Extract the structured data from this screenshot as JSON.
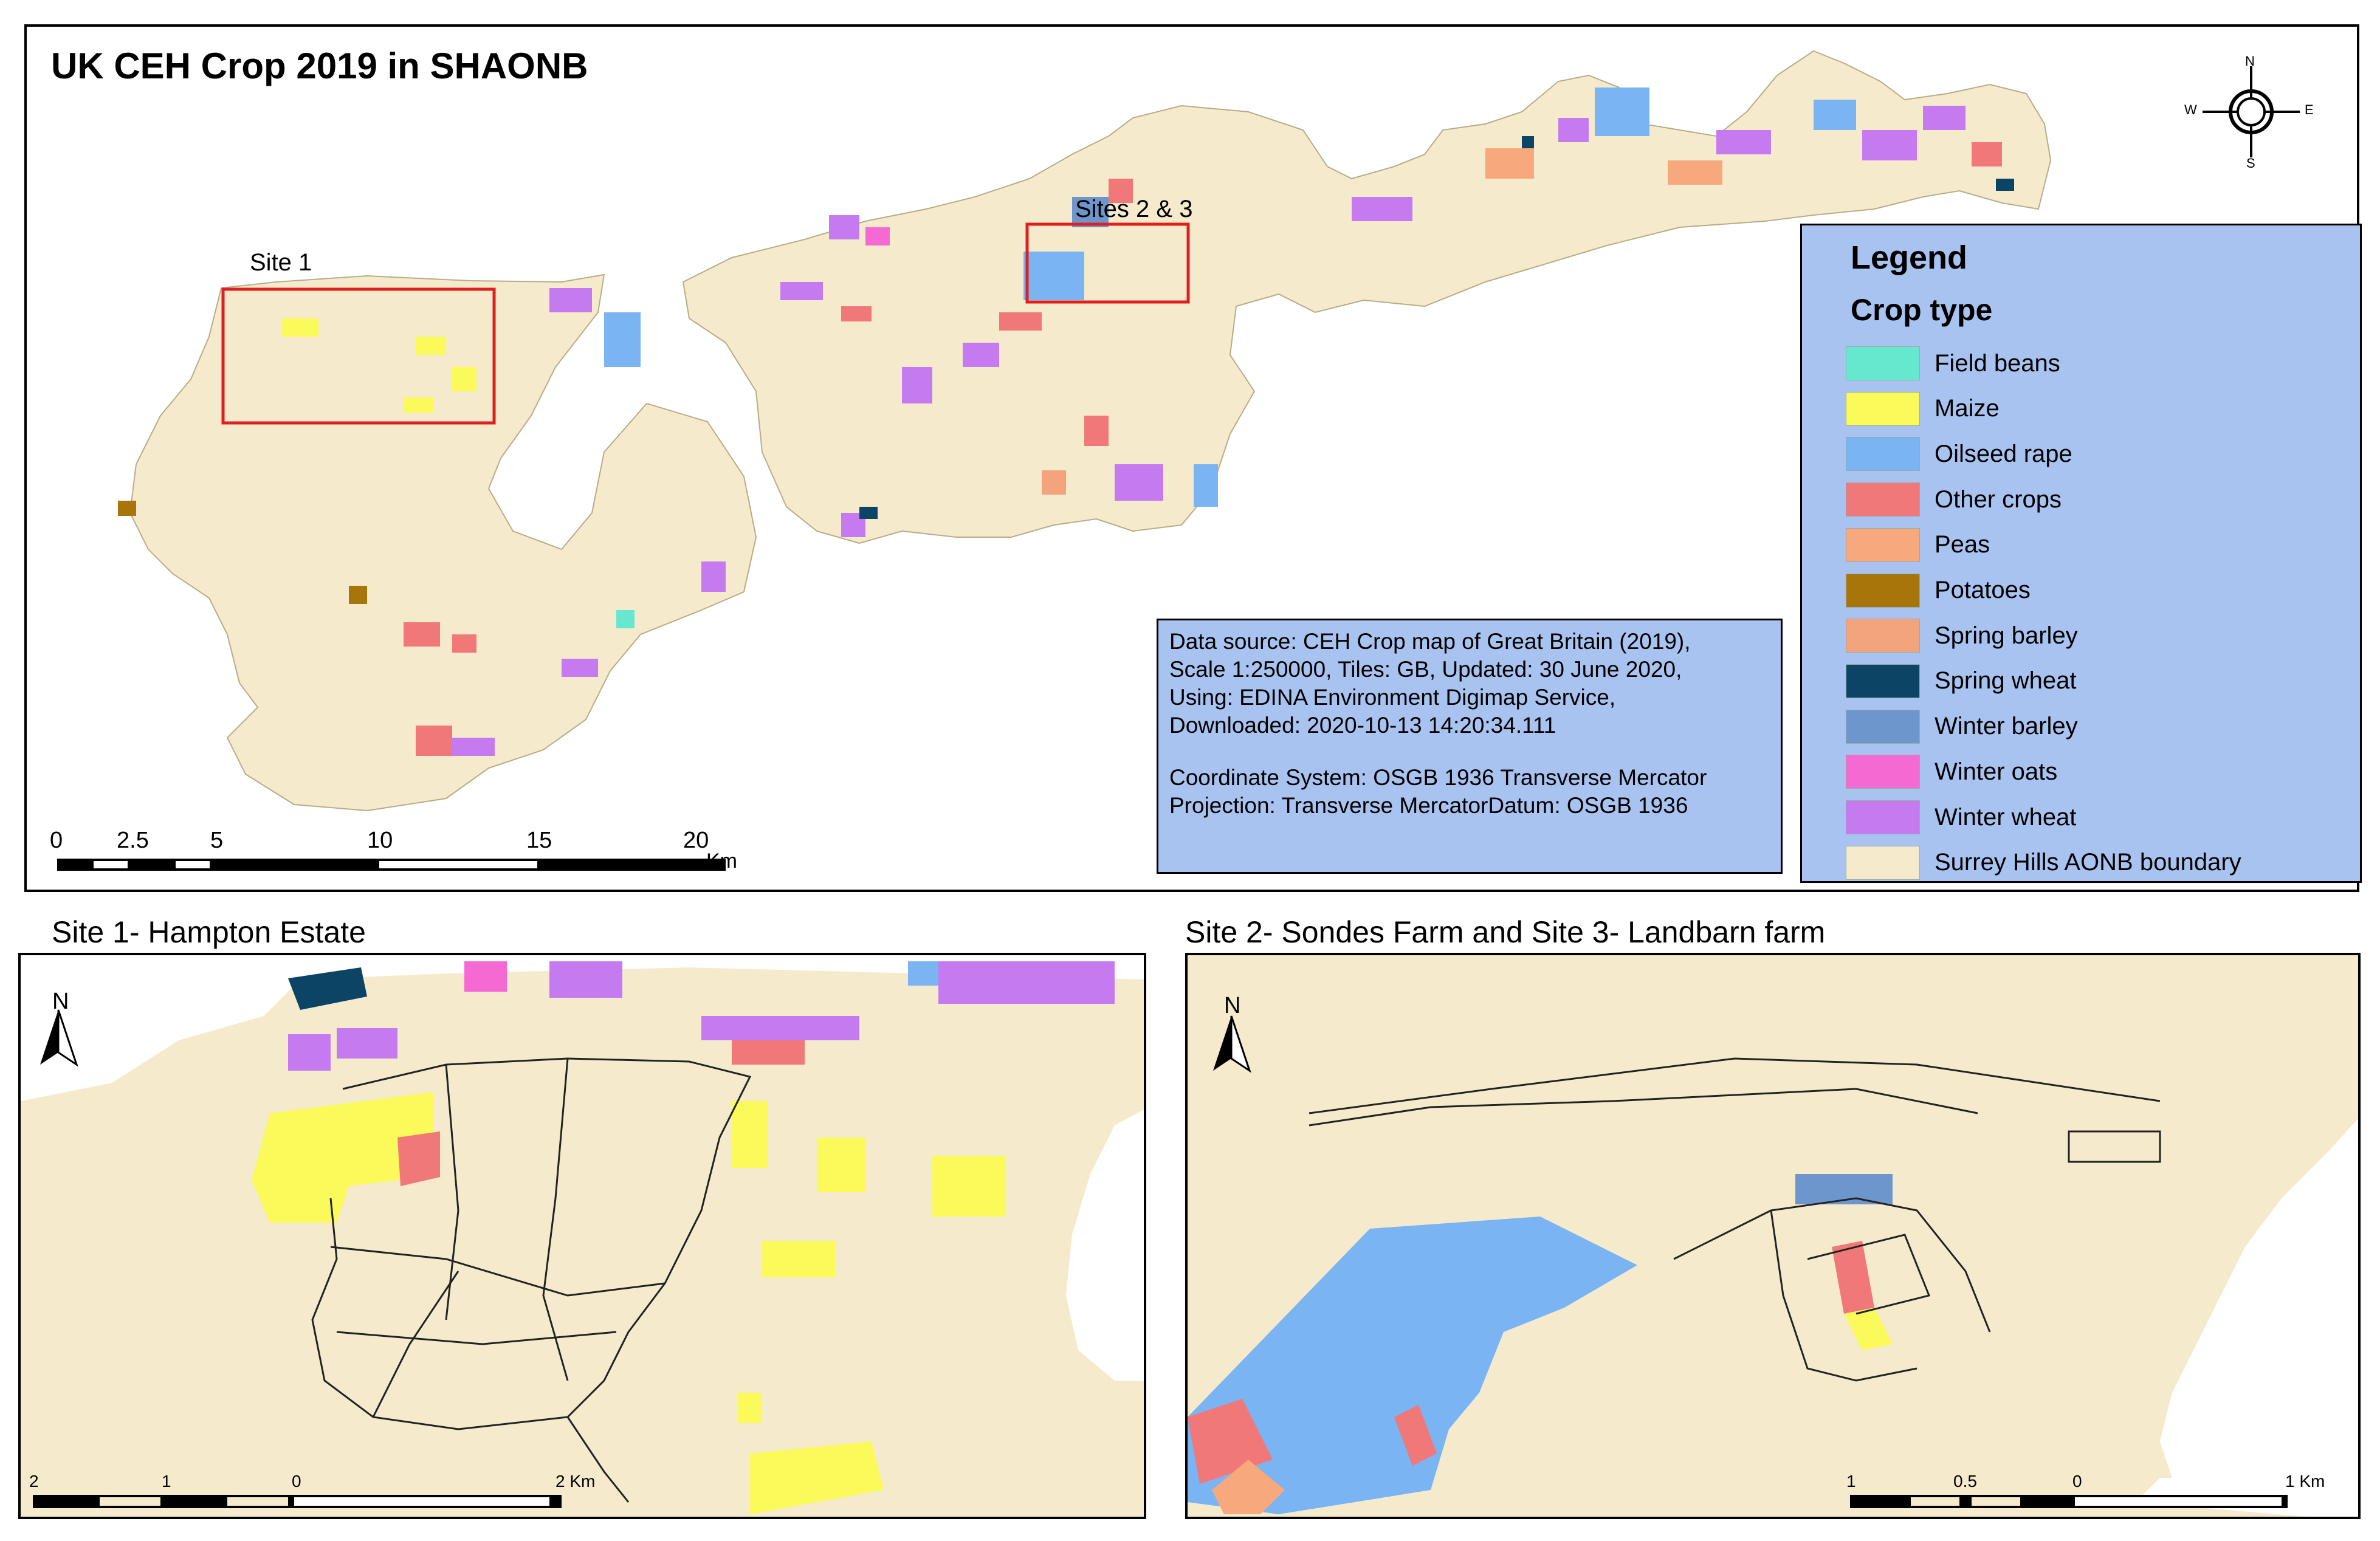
{
  "map": {
    "title": "UK CEH Crop 2019 in SHAONB",
    "overview": {
      "site1_label": "Site 1",
      "site23_label": "Sites 2 & 3",
      "compass": {
        "n": "N",
        "e": "E",
        "s": "S",
        "w": "W"
      },
      "scale_ticks": [
        "0",
        "2.5",
        "5",
        "10",
        "15",
        "20"
      ],
      "scale_unit": "Km"
    },
    "legend": {
      "title": "Legend",
      "subtitle": "Crop type",
      "items": [
        {
          "label": "Field beans",
          "color": "#66e8cf"
        },
        {
          "label": "Maize",
          "color": "#fafa5a"
        },
        {
          "label": "Oilseed rape",
          "color": "#7ab4f2"
        },
        {
          "label": "Other crops",
          "color": "#f07878"
        },
        {
          "label": "Peas",
          "color": "#f7a87c"
        },
        {
          "label": "Potatoes",
          "color": "#a8750a"
        },
        {
          "label": "Spring barley",
          "color": "#f3a47c"
        },
        {
          "label": "Spring wheat",
          "color": "#0c4466"
        },
        {
          "label": "Winter barley",
          "color": "#6d97cc"
        },
        {
          "label": "Winter oats",
          "color": "#f56ad2"
        },
        {
          "label": "Winter wheat",
          "color": "#c67af0"
        },
        {
          "label": "Surrey Hills AONB boundary",
          "color": "#f5ebcc"
        }
      ]
    },
    "info": {
      "lines": [
        "Data source: CEH Crop map of Great Britain (2019),",
        "Scale 1:250000,  Tiles: GB,  Updated: 30 June 2020,",
        "Using: EDINA Environment Digimap Service,",
        "Downloaded: 2020-10-13 14:20:34.111"
      ],
      "lines2": [
        "Coordinate System: OSGB 1936 Transverse Mercator",
        "Projection: Transverse MercatorDatum: OSGB 1936"
      ]
    },
    "site1": {
      "title": "Site 1- Hampton Estate",
      "north": "N",
      "scale_ticks": [
        "2",
        "1",
        "0",
        "2 Km"
      ]
    },
    "site23": {
      "title": "Site 2- Sondes Farm and Site 3- Landbarn farm",
      "north": "N",
      "scale_ticks": [
        "1",
        "0.5",
        "0",
        "1 Km"
      ]
    },
    "colors": {
      "boundary_fill": "#f5ebcc",
      "frame": "#000000",
      "highlight_box": "#e02020"
    }
  }
}
